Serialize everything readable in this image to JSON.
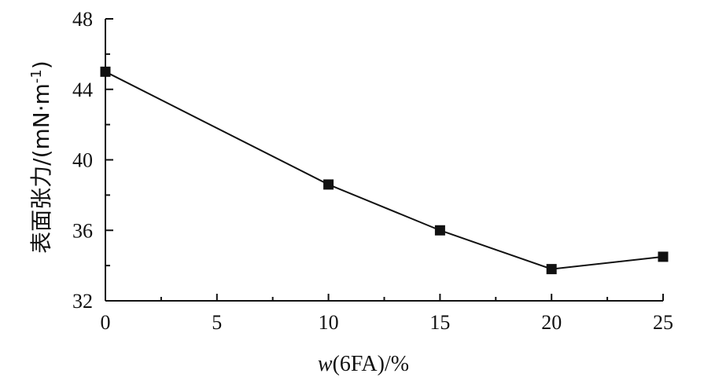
{
  "chart_data": {
    "type": "line",
    "title": "",
    "xlabel": {
      "var": "w",
      "rest": "(6FA)/%"
    },
    "ylabel": {
      "text": "表面张力/(mN·m",
      "sup": "-1",
      "close": ")"
    },
    "xlim": [
      0,
      25
    ],
    "ylim": [
      32,
      48
    ],
    "x_ticks": [
      "0",
      "5",
      "10",
      "15",
      "20",
      "25"
    ],
    "y_ticks": [
      "32",
      "36",
      "40",
      "44",
      "48"
    ],
    "grid": false,
    "legend": "none",
    "series": [
      {
        "x": [
          0,
          10,
          15,
          20,
          25
        ],
        "y": [
          45.0,
          38.6,
          36.0,
          33.8,
          34.5
        ]
      }
    ],
    "colors": {
      "line": "#111111",
      "marker": "#111111",
      "axis": "#111111"
    }
  }
}
